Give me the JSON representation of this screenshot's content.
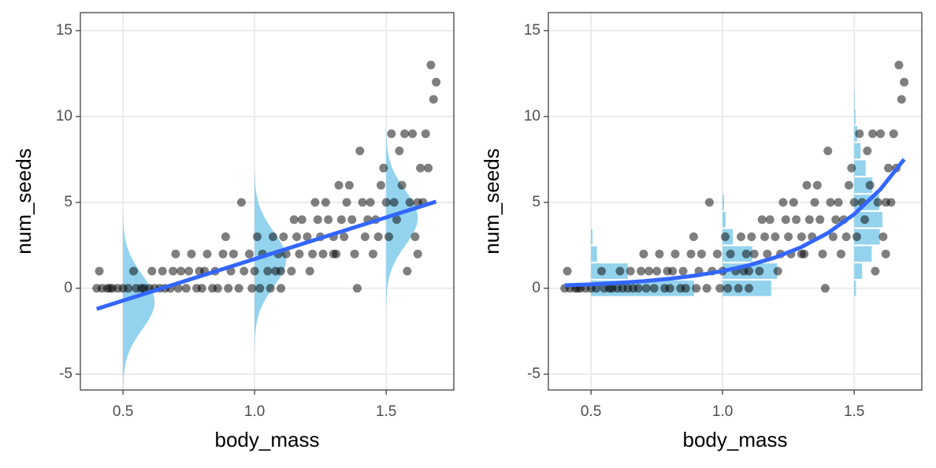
{
  "chart_data": [
    {
      "type": "scatter",
      "xlabel": "body_mass",
      "ylabel": "num_seeds",
      "xlim": [
        0.338,
        1.757
      ],
      "ylim": [
        -5.92,
        16.05
      ],
      "xticks": [
        0.5,
        {
          "value": 1,
          "label": "1.0"
        },
        1.5
      ],
      "yticks": [
        -5,
        0,
        5,
        10,
        15
      ],
      "grid": true,
      "point_color": "#000000",
      "fit_color": "#3366ff",
      "overlay_color": "#87ceeb",
      "x": [
        0.4,
        0.41,
        0.42,
        0.44,
        0.45,
        0.46,
        0.48,
        0.5,
        0.52,
        0.54,
        0.55,
        0.57,
        0.58,
        0.6,
        0.61,
        0.62,
        0.64,
        0.65,
        0.66,
        0.68,
        0.69,
        0.7,
        0.71,
        0.72,
        0.74,
        0.75,
        0.76,
        0.78,
        0.79,
        0.8,
        0.81,
        0.82,
        0.84,
        0.85,
        0.86,
        0.88,
        0.89,
        0.9,
        0.91,
        0.92,
        0.94,
        0.95,
        0.96,
        0.98,
        0.99,
        1.0,
        1.01,
        1.02,
        1.03,
        1.05,
        1.06,
        1.07,
        1.08,
        1.09,
        1.1,
        1.11,
        1.12,
        1.14,
        1.15,
        1.16,
        1.17,
        1.18,
        1.2,
        1.21,
        1.22,
        1.23,
        1.24,
        1.25,
        1.26,
        1.27,
        1.28,
        1.3,
        1.31,
        1.32,
        1.33,
        1.34,
        1.35,
        1.36,
        1.37,
        1.38,
        1.39,
        1.4,
        1.41,
        1.42,
        1.43,
        1.44,
        1.45,
        1.46,
        1.47,
        1.48,
        1.49,
        1.5,
        1.51,
        1.52,
        1.53,
        1.54,
        1.55,
        1.56,
        1.57,
        1.58,
        1.59,
        1.6,
        1.61,
        1.62,
        1.63,
        1.64,
        1.65,
        1.66,
        1.67,
        1.68,
        1.69,
        1.62,
        1.3,
        1.1
      ],
      "values": [
        0,
        1,
        0,
        0,
        0,
        0,
        0,
        0,
        0,
        1,
        0,
        0,
        0,
        0,
        1,
        0,
        0,
        1,
        0,
        0,
        1,
        2,
        0,
        1,
        0,
        1,
        2,
        0,
        1,
        0,
        1,
        2,
        0,
        1,
        0,
        2,
        3,
        0,
        1,
        2,
        0,
        5,
        1,
        2,
        0,
        1,
        3,
        0,
        2,
        1,
        0,
        3,
        1,
        2,
        0,
        3,
        2,
        1,
        4,
        3,
        2,
        4,
        3,
        1,
        2,
        5,
        4,
        3,
        2,
        5,
        4,
        3,
        2,
        6,
        4,
        3,
        5,
        6,
        4,
        2,
        0,
        8,
        5,
        3,
        4,
        5,
        2,
        4,
        3,
        6,
        7,
        5,
        3,
        9,
        5,
        4,
        8,
        6,
        9,
        1,
        5,
        9,
        3,
        5,
        7,
        5,
        9,
        7,
        13,
        11,
        12,
        2,
        2,
        1
      ],
      "fit": {
        "x": [
          0.4,
          1.69
        ],
        "y": [
          -1.2,
          5.05
        ]
      },
      "distributions": [
        {
          "x": 0.5,
          "mean": -0.8,
          "sd": 1.6
        },
        {
          "x": 1.0,
          "mean": 1.7,
          "sd": 1.6
        },
        {
          "x": 1.5,
          "mean": 4.1,
          "sd": 1.6
        }
      ]
    },
    {
      "type": "scatter",
      "xlabel": "body_mass",
      "ylabel": "num_seeds",
      "xlim": [
        0.338,
        1.757
      ],
      "ylim": [
        -5.92,
        16.05
      ],
      "xticks": [
        0.5,
        {
          "value": 1,
          "label": "1.0"
        },
        1.5
      ],
      "yticks": [
        -5,
        0,
        5,
        10,
        15
      ],
      "grid": true,
      "point_color": "#000000",
      "fit_color": "#3366ff",
      "overlay_color": "#87ceeb",
      "x": [
        0.4,
        0.41,
        0.42,
        0.44,
        0.45,
        0.46,
        0.48,
        0.5,
        0.52,
        0.54,
        0.55,
        0.57,
        0.58,
        0.6,
        0.61,
        0.62,
        0.64,
        0.65,
        0.66,
        0.68,
        0.69,
        0.7,
        0.71,
        0.72,
        0.74,
        0.75,
        0.76,
        0.78,
        0.79,
        0.8,
        0.81,
        0.82,
        0.84,
        0.85,
        0.86,
        0.88,
        0.89,
        0.9,
        0.91,
        0.92,
        0.94,
        0.95,
        0.96,
        0.98,
        0.99,
        1.0,
        1.01,
        1.02,
        1.03,
        1.05,
        1.06,
        1.07,
        1.08,
        1.09,
        1.1,
        1.11,
        1.12,
        1.14,
        1.15,
        1.16,
        1.17,
        1.18,
        1.2,
        1.21,
        1.22,
        1.23,
        1.24,
        1.25,
        1.26,
        1.27,
        1.28,
        1.3,
        1.31,
        1.32,
        1.33,
        1.34,
        1.35,
        1.36,
        1.37,
        1.38,
        1.39,
        1.4,
        1.41,
        1.42,
        1.43,
        1.44,
        1.45,
        1.46,
        1.47,
        1.48,
        1.49,
        1.5,
        1.51,
        1.52,
        1.53,
        1.54,
        1.55,
        1.56,
        1.57,
        1.58,
        1.59,
        1.6,
        1.61,
        1.62,
        1.63,
        1.64,
        1.65,
        1.66,
        1.67,
        1.68,
        1.69,
        1.62,
        1.3,
        1.1
      ],
      "values": [
        0,
        1,
        0,
        0,
        0,
        0,
        0,
        0,
        0,
        1,
        0,
        0,
        0,
        0,
        1,
        0,
        0,
        1,
        0,
        0,
        1,
        2,
        0,
        1,
        0,
        1,
        2,
        0,
        1,
        0,
        1,
        2,
        0,
        1,
        0,
        2,
        3,
        0,
        1,
        2,
        0,
        5,
        1,
        2,
        0,
        1,
        3,
        0,
        2,
        1,
        0,
        3,
        1,
        2,
        0,
        3,
        2,
        1,
        4,
        3,
        2,
        4,
        3,
        1,
        2,
        5,
        4,
        3,
        2,
        5,
        4,
        3,
        2,
        6,
        4,
        3,
        5,
        6,
        4,
        2,
        0,
        8,
        5,
        3,
        4,
        5,
        2,
        4,
        3,
        6,
        7,
        5,
        3,
        9,
        5,
        4,
        8,
        6,
        9,
        1,
        5,
        9,
        3,
        5,
        7,
        5,
        9,
        7,
        13,
        11,
        12,
        2,
        2,
        1
      ],
      "fit": {
        "x": [
          0.4,
          0.5,
          0.6,
          0.7,
          0.8,
          0.9,
          1.0,
          1.1,
          1.2,
          1.3,
          1.4,
          1.5,
          1.6,
          1.69
        ],
        "y": [
          0.174,
          0.233,
          0.311,
          0.417,
          0.558,
          0.748,
          1.001,
          1.341,
          1.796,
          2.404,
          3.22,
          4.31,
          5.77,
          7.51
        ]
      },
      "probability_bars": [
        {
          "x": 0.5,
          "probabilities": [
            0.7,
            0.25,
            0.04,
            0.01
          ]
        },
        {
          "x": 1.0,
          "probabilities": [
            0.33,
            0.37,
            0.2,
            0.07,
            0.02,
            0.01
          ]
        },
        {
          "x": 1.5,
          "probabilities": [
            0.012,
            0.054,
            0.119,
            0.174,
            0.192,
            0.169,
            0.124,
            0.078,
            0.043,
            0.021,
            0.009,
            0.004,
            0.001,
            0.0005,
            0.0002,
            0.0001
          ]
        }
      ]
    }
  ]
}
